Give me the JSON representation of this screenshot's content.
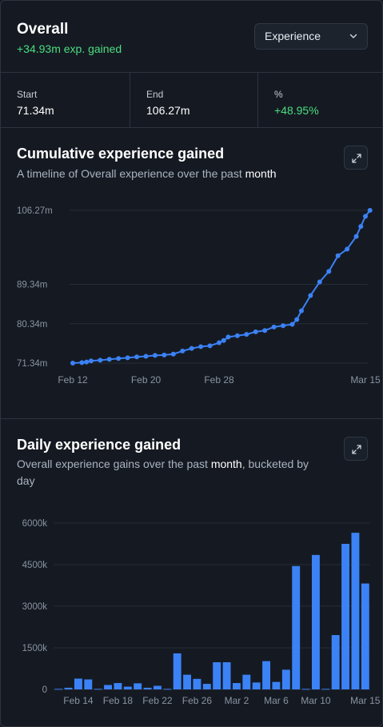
{
  "header": {
    "title": "Overall",
    "gain_text": "+34.93m exp. gained",
    "metric_select": {
      "selected": "Experience"
    }
  },
  "stats": [
    {
      "label": "Start",
      "value": "71.34m"
    },
    {
      "label": "End",
      "value": "106.27m"
    },
    {
      "label": "%",
      "value": "+48.95%"
    }
  ],
  "cumulative": {
    "title": "Cumulative experience gained",
    "subtitle_prefix": "A timeline of Overall experience over the past ",
    "subtitle_period": "month",
    "subtitle_suffix": ""
  },
  "daily": {
    "title": "Daily experience gained",
    "subtitle_prefix": "Overall experience gains over the past ",
    "subtitle_period": "month",
    "subtitle_suffix": ", bucketed by day"
  },
  "colors": {
    "accent": "#3b82f6",
    "positive": "#4ade80",
    "background": "#151a22",
    "border": "#2c3440"
  },
  "icons": {
    "expand": "expand-icon",
    "dropdown": "chevron-down-icon"
  },
  "chart_data": [
    {
      "type": "line",
      "title": "Cumulative experience gained",
      "y_unit": "m",
      "ylim": [
        71.34,
        106.27
      ],
      "y_ticks": [
        71.34,
        80.34,
        89.34,
        106.27
      ],
      "y_tick_labels": [
        "71.34m",
        "80.34m",
        "89.34m",
        "106.27m"
      ],
      "x_range": [
        "2024-02-12",
        "2024-03-15"
      ],
      "x_ticks": [
        "2024-02-12",
        "2024-02-20",
        "2024-02-28",
        "2024-03-15"
      ],
      "x_tick_labels": [
        "Feb 12",
        "Feb 20",
        "Feb 28",
        "Mar 15"
      ],
      "grid": true,
      "series": [
        {
          "points": [
            [
              "2024-02-12",
              71.34
            ],
            [
              "2024-02-13",
              71.45
            ],
            [
              "2024-02-13",
              71.6
            ],
            [
              "2024-02-14",
              71.85
            ],
            [
              "2024-02-15",
              72.0
            ],
            [
              "2024-02-16",
              72.2
            ],
            [
              "2024-02-17",
              72.4
            ],
            [
              "2024-02-18",
              72.55
            ],
            [
              "2024-02-19",
              72.75
            ],
            [
              "2024-02-20",
              72.9
            ],
            [
              "2024-02-21",
              73.1
            ],
            [
              "2024-02-22",
              73.2
            ],
            [
              "2024-02-23",
              73.4
            ],
            [
              "2024-02-24",
              74.1
            ],
            [
              "2024-02-25",
              74.7
            ],
            [
              "2024-02-26",
              75.1
            ],
            [
              "2024-02-27",
              75.3
            ],
            [
              "2024-02-28",
              76.0
            ],
            [
              "2024-02-28",
              76.5
            ],
            [
              "2024-02-29",
              77.3
            ],
            [
              "2024-03-01",
              77.6
            ],
            [
              "2024-03-02",
              77.9
            ],
            [
              "2024-03-03",
              78.5
            ],
            [
              "2024-03-04",
              78.8
            ],
            [
              "2024-03-05",
              79.6
            ],
            [
              "2024-03-06",
              79.9
            ],
            [
              "2024-03-07",
              80.2
            ],
            [
              "2024-03-07",
              81.3
            ],
            [
              "2024-03-08",
              83.3
            ],
            [
              "2024-03-09",
              86.8
            ],
            [
              "2024-03-10",
              89.9
            ],
            [
              "2024-03-11",
              92.3
            ],
            [
              "2024-03-12",
              95.9
            ],
            [
              "2024-03-13",
              97.4
            ],
            [
              "2024-03-14",
              100.3
            ],
            [
              "2024-03-14",
              102.6
            ],
            [
              "2024-03-15",
              104.9
            ],
            [
              "2024-03-15",
              106.27
            ]
          ]
        }
      ]
    },
    {
      "type": "bar",
      "title": "Daily experience gained",
      "ylim": [
        0,
        6000
      ],
      "y_ticks": [
        0,
        1500,
        3000,
        4500,
        6000
      ],
      "y_tick_labels": [
        "0",
        "1500k",
        "3000k",
        "4500k",
        "6000k"
      ],
      "x_tick_labels": [
        "Feb 14",
        "Feb 18",
        "Feb 22",
        "Feb 26",
        "Mar 2",
        "Mar 6",
        "Mar 10",
        "Mar 15"
      ],
      "x_tick_indices": [
        2,
        6,
        10,
        14,
        18,
        22,
        26,
        31
      ],
      "grid": true,
      "values": [
        20,
        60,
        390,
        360,
        20,
        160,
        230,
        100,
        220,
        60,
        130,
        20,
        1300,
        530,
        380,
        200,
        980,
        980,
        230,
        530,
        250,
        1020,
        270,
        710,
        4450,
        20,
        4850,
        20,
        1960,
        5250,
        5650,
        3820
      ]
    }
  ]
}
